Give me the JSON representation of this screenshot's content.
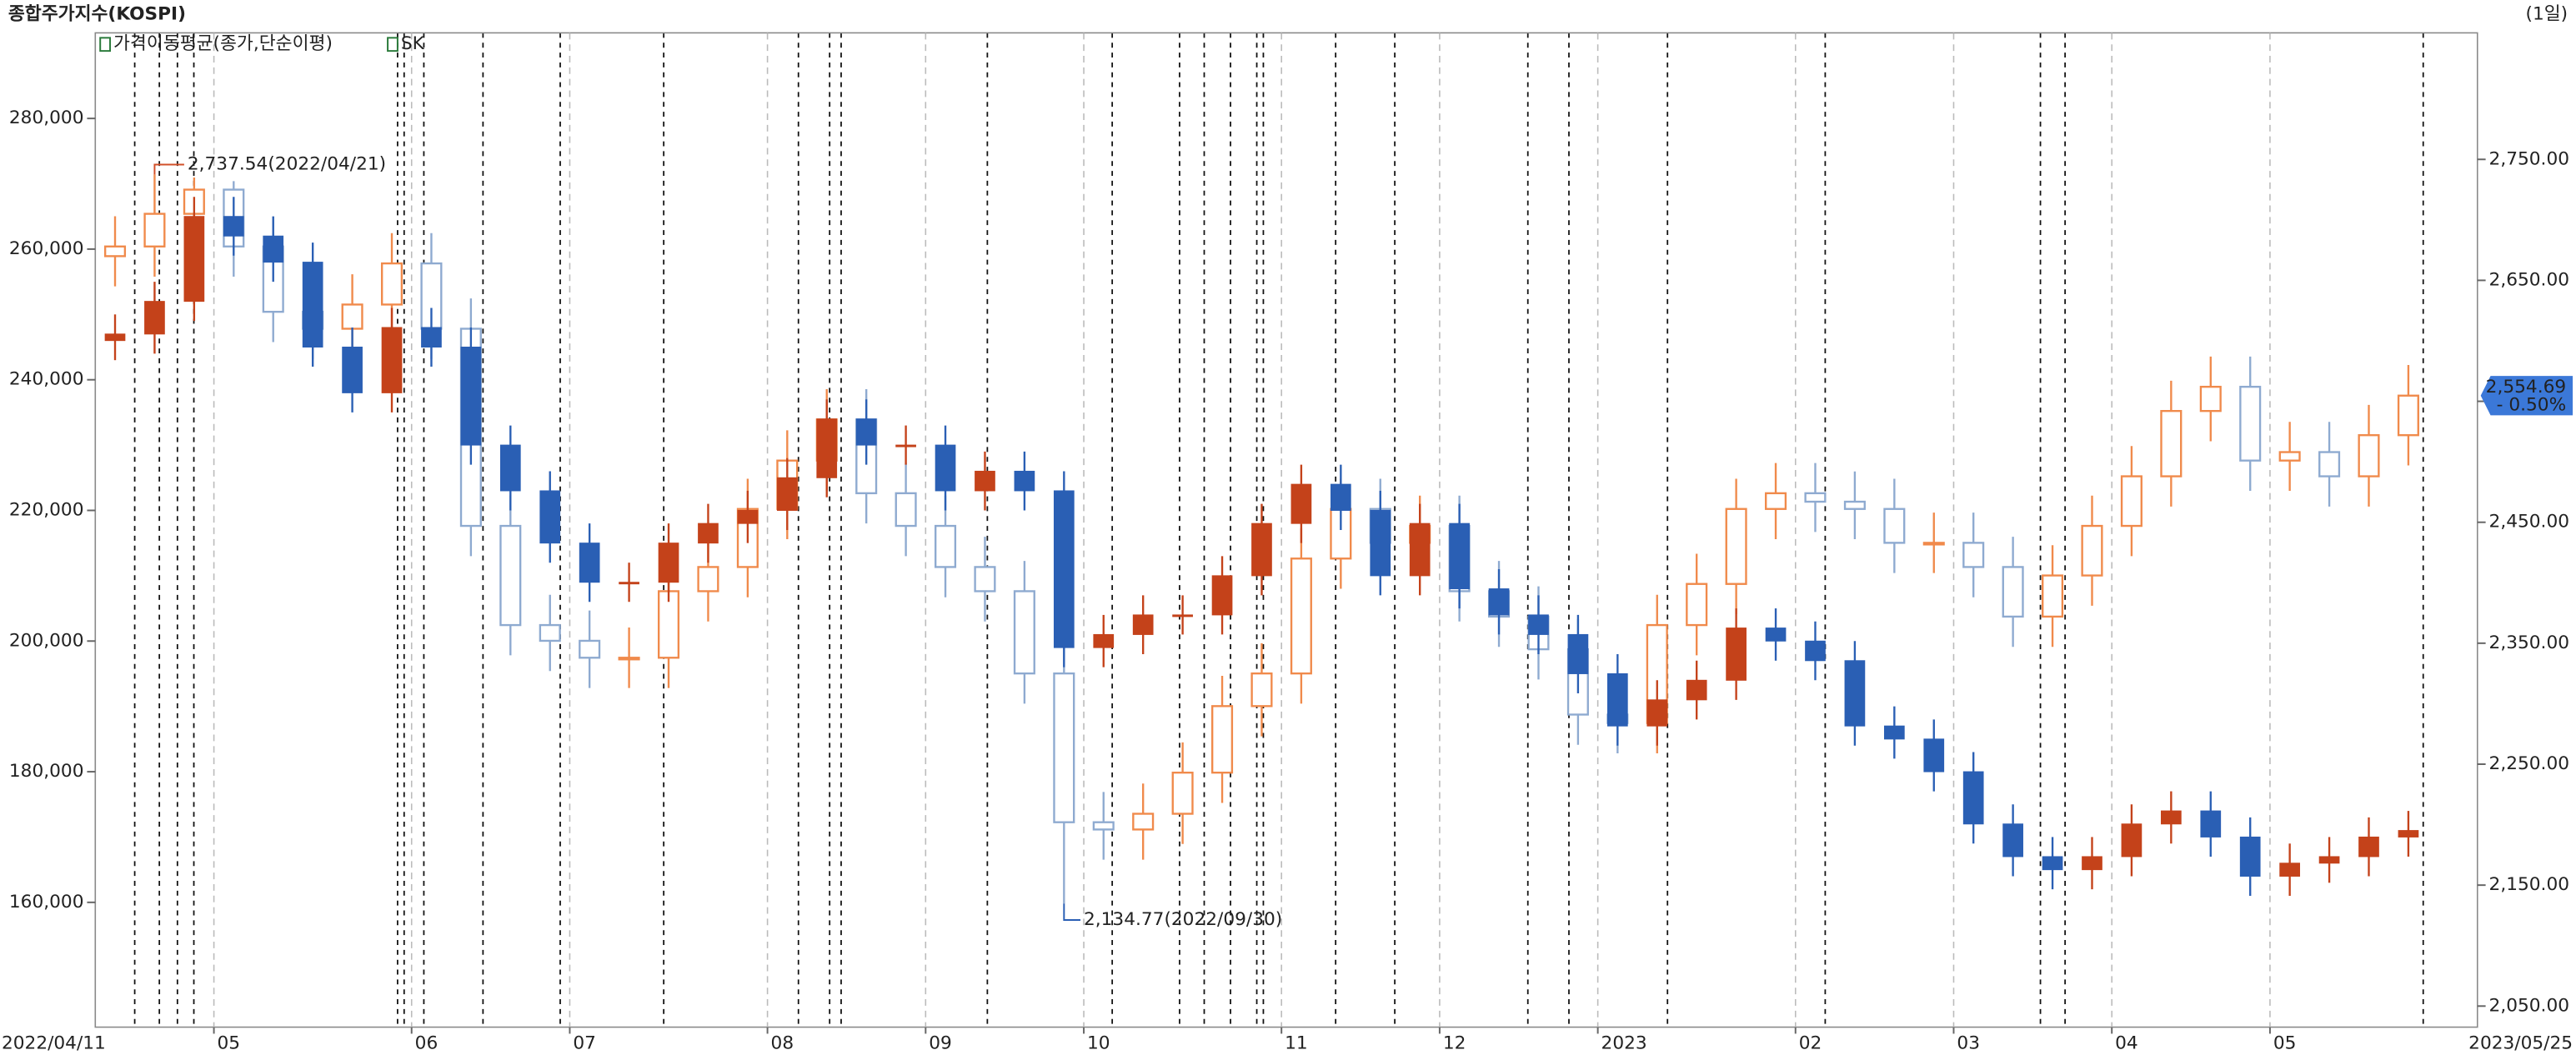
{
  "chart_data": {
    "type": "candlestick",
    "title": "종합주가지수(KOSPI)",
    "period": "(1일)",
    "indicator_legend": "가격이동평균(종가,단순이평)",
    "categories": [
      "2022/04/11",
      null,
      null,
      "05",
      null,
      null,
      null,
      null,
      "06",
      null,
      null,
      null,
      "07",
      null,
      null,
      null,
      null,
      "08",
      null,
      null,
      null,
      "09",
      null,
      null,
      null,
      "10",
      null,
      null,
      null,
      null,
      "11",
      null,
      null,
      null,
      "12",
      null,
      null,
      null,
      "2023",
      null,
      null,
      null,
      null,
      "02",
      null,
      null,
      null,
      "03",
      null,
      null,
      null,
      "04",
      null,
      null,
      null,
      "05",
      null,
      null,
      "2023/05/25"
    ],
    "ylim": [
      140900,
      293100
    ],
    "yticks": [
      {
        "value": 160000,
        "label": "160,000"
      },
      {
        "value": 180000,
        "label": "180,000"
      },
      {
        "value": 200000,
        "label": "200,000"
      },
      {
        "value": 220000,
        "label": "220,000"
      },
      {
        "value": 240000,
        "label": "240,000"
      },
      {
        "value": 260000,
        "label": "260,000"
      },
      {
        "value": 280000,
        "label": "280,000"
      }
    ],
    "y2lim": [
      2032.6,
      2854.6
    ],
    "y2ticks": [
      {
        "value": 2050,
        "label": "2,050.00"
      },
      {
        "value": 2150,
        "label": "2,150.00"
      },
      {
        "value": 2250,
        "label": "2,250.00"
      },
      {
        "value": 2350,
        "label": "2,350.00"
      },
      {
        "value": 2450,
        "label": "2,450.00"
      },
      {
        "value": 2550,
        "label": "2,550.00"
      },
      {
        "value": 2650,
        "label": "2,650.00"
      },
      {
        "value": 2750,
        "label": "2,750.00"
      }
    ],
    "series": [
      {
        "name": "SK",
        "axis": "y",
        "style": "solid",
        "up_color": "#c4421a",
        "down_color": "#2a5fb4",
        "open": [
          246000,
          247000,
          252000,
          265000,
          262000,
          258000,
          245000,
          238000,
          248000,
          245000,
          230000,
          223000,
          215000,
          209000,
          209000,
          215000,
          218000,
          220000,
          225000,
          234000,
          230000,
          230000,
          223000,
          226000,
          223000,
          199000,
          201000,
          204000,
          204000,
          210000,
          218000,
          224000,
          220000,
          210000,
          218000,
          208000,
          204000,
          201000,
          195000,
          187000,
          191000,
          194000,
          202000,
          200000,
          197000,
          187000,
          185000,
          180000,
          172000,
          167000,
          165000,
          167000,
          172000,
          174000,
          170000,
          164000,
          166000,
          167000,
          170000
        ],
        "high": [
          250000,
          255000,
          268000,
          268000,
          265000,
          261000,
          248000,
          251000,
          251000,
          248000,
          233000,
          226000,
          218000,
          212000,
          218000,
          221000,
          223000,
          228000,
          237000,
          237000,
          233000,
          233000,
          229000,
          229000,
          226000,
          204000,
          207000,
          207000,
          213000,
          221000,
          227000,
          227000,
          223000,
          221000,
          221000,
          211000,
          207000,
          204000,
          198000,
          194000,
          197000,
          205000,
          205000,
          203000,
          200000,
          190000,
          188000,
          183000,
          175000,
          170000,
          170000,
          175000,
          177000,
          177000,
          173000,
          169000,
          170000,
          173000,
          174000
        ],
        "low": [
          243000,
          244000,
          249000,
          259000,
          255000,
          242000,
          235000,
          235000,
          242000,
          227000,
          220000,
          212000,
          206000,
          206000,
          206000,
          212000,
          215000,
          217000,
          222000,
          227000,
          227000,
          220000,
          220000,
          220000,
          196000,
          196000,
          198000,
          201000,
          201000,
          207000,
          215000,
          217000,
          207000,
          207000,
          205000,
          201000,
          198000,
          192000,
          184000,
          184000,
          188000,
          191000,
          197000,
          194000,
          184000,
          182000,
          177000,
          169000,
          164000,
          162000,
          162000,
          164000,
          169000,
          167000,
          161000,
          161000,
          163000,
          164000,
          167000
        ],
        "close": [
          247000,
          252000,
          265000,
          262000,
          258000,
          245000,
          238000,
          248000,
          245000,
          230000,
          223000,
          215000,
          209000,
          209000,
          215000,
          218000,
          220000,
          225000,
          234000,
          230000,
          230000,
          223000,
          226000,
          223000,
          199000,
          201000,
          204000,
          204000,
          210000,
          218000,
          224000,
          220000,
          210000,
          218000,
          208000,
          204000,
          201000,
          195000,
          187000,
          191000,
          194000,
          202000,
          200000,
          197000,
          187000,
          185000,
          180000,
          172000,
          167000,
          165000,
          167000,
          172000,
          174000,
          170000,
          164000,
          166000,
          167000,
          170000,
          171000
        ]
      },
      {
        "axis": "y2",
        "style": "hollow",
        "up_color": "#f08a4b",
        "down_color": "#8eaad0",
        "max_label": "2,737.54(2022/04/21)",
        "max_color": "#d2502a",
        "min_label": "2,134.77(2022/09/30)",
        "min_color": "#2a5fb4",
        "last_label": "2,554.69",
        "last_change": "- 0.50%",
        "last_color": "#3b78d8",
        "open": [
          2670,
          2678,
          2705,
          2725,
          2678,
          2624,
          2610,
          2630,
          2664,
          2610,
          2447,
          2365,
          2352,
          2338,
          2338,
          2393,
          2413,
          2461,
          2501,
          2535,
          2474,
          2447,
          2413,
          2393,
          2325,
          2202,
          2196,
          2209,
          2243,
          2298,
          2325,
          2420,
          2461,
          2433,
          2447,
          2393,
          2372,
          2345,
          2291,
          2284,
          2365,
          2399,
          2461,
          2474,
          2467,
          2461,
          2433,
          2433,
          2413,
          2372,
          2406,
          2447,
          2488,
          2542,
          2562,
          2501,
          2508,
          2488,
          2522
        ],
        "high": [
          2703,
          2737.54,
          2735,
          2732,
          2703,
          2649,
          2655,
          2689,
          2689,
          2635,
          2472,
          2390,
          2377,
          2363,
          2418,
          2438,
          2486,
          2526,
          2560,
          2560,
          2499,
          2472,
          2438,
          2418,
          2350,
          2227,
          2234,
          2268,
          2323,
          2350,
          2445,
          2486,
          2486,
          2472,
          2472,
          2418,
          2397,
          2370,
          2316,
          2390,
          2424,
          2486,
          2499,
          2499,
          2492,
          2486,
          2458,
          2458,
          2438,
          2431,
          2472,
          2513,
          2567,
          2587,
          2587,
          2533,
          2533,
          2547,
          2580
        ],
        "low": [
          2645,
          2653,
          2680,
          2653,
          2599,
          2585,
          2585,
          2605,
          2585,
          2422,
          2340,
          2327,
          2313,
          2313,
          2313,
          2368,
          2388,
          2436,
          2476,
          2449,
          2422,
          2388,
          2368,
          2300,
          2134.77,
          2171,
          2171,
          2184,
          2218,
          2273,
          2300,
          2395,
          2408,
          2408,
          2368,
          2347,
          2320,
          2266,
          2259,
          2259,
          2340,
          2374,
          2436,
          2442,
          2436,
          2408,
          2408,
          2388,
          2347,
          2347,
          2381,
          2422,
          2463,
          2517,
          2476,
          2476,
          2463,
          2463,
          2497
        ],
        "close": [
          2678,
          2705,
          2725,
          2678,
          2624,
          2610,
          2630,
          2664,
          2610,
          2447,
          2365,
          2352,
          2338,
          2338,
          2393,
          2413,
          2461,
          2501,
          2535,
          2474,
          2447,
          2413,
          2393,
          2325,
          2202,
          2196,
          2209,
          2243,
          2298,
          2325,
          2420,
          2461,
          2433,
          2447,
          2393,
          2372,
          2345,
          2291,
          2284,
          2365,
          2399,
          2461,
          2474,
          2467,
          2461,
          2433,
          2433,
          2413,
          2372,
          2406,
          2447,
          2488,
          2542,
          2562,
          2501,
          2508,
          2488,
          2522,
          2554.69
        ]
      }
    ]
  }
}
